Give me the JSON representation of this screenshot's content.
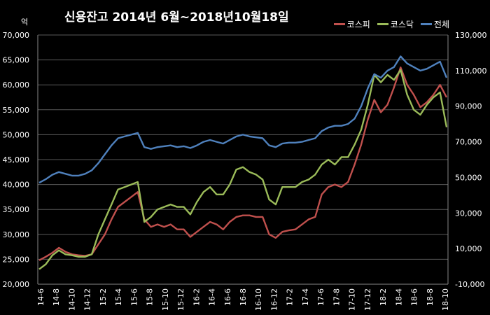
{
  "chart_data": {
    "type": "line",
    "title": "신용잔고  2014년 6월~2018년10월18일",
    "left_unit": "억",
    "x_tick_labels": [
      "14-6",
      "14-8",
      "14-10",
      "14-12",
      "15-2",
      "15-4",
      "15-6",
      "15-8",
      "15-10",
      "15-12",
      "16-2",
      "16-4",
      "16-6",
      "16-8",
      "16-10",
      "16-12",
      "17-2",
      "17-4",
      "17-6",
      "17-8",
      "17-10",
      "17-12",
      "18-2",
      "18-4",
      "18-6",
      "18-8",
      "18-10"
    ],
    "y_left": {
      "min": 20000,
      "max": 70000,
      "step": 5000,
      "ticks": [
        "20,000",
        "25,000",
        "30,000",
        "35,000",
        "40,000",
        "45,000",
        "50,000",
        "55,000",
        "60,000",
        "65,000",
        "70,000"
      ]
    },
    "y_right": {
      "min": -10000,
      "max": 130000,
      "step": 20000,
      "ticks": [
        "-10,000",
        "10,000",
        "30,000",
        "50,000",
        "70,000",
        "90,000",
        "110,000",
        "130,000"
      ]
    },
    "grid": true,
    "legend_position": "top-right",
    "series": [
      {
        "name": "코스피",
        "color": "#c0504d",
        "axis": "left",
        "values": [
          24800,
          25500,
          26300,
          27300,
          26500,
          26000,
          25800,
          25700,
          26000,
          28000,
          30000,
          33000,
          35500,
          36500,
          37500,
          38500,
          33000,
          31500,
          32000,
          31500,
          32000,
          31000,
          31000,
          29500,
          30500,
          31500,
          32500,
          32000,
          31000,
          32500,
          33500,
          33800,
          33800,
          33500,
          33500,
          30000,
          29300,
          30500,
          30800,
          31000,
          32000,
          33000,
          33500,
          38000,
          39500,
          40000,
          39500,
          40500,
          44000,
          48000,
          53000,
          57000,
          54500,
          56000,
          59500,
          63500,
          60000,
          58000,
          55500,
          56500,
          58000,
          60000,
          57500
        ]
      },
      {
        "name": "코스닥",
        "color": "#9bbb59",
        "axis": "left",
        "values": [
          23000,
          24000,
          25800,
          26800,
          26000,
          25800,
          25500,
          25500,
          26000,
          30000,
          33000,
          36000,
          39000,
          39500,
          40000,
          40500,
          32500,
          33500,
          35000,
          35500,
          36000,
          35500,
          35500,
          34000,
          36500,
          38500,
          39500,
          38000,
          38000,
          40000,
          43000,
          43500,
          42500,
          42000,
          41000,
          37000,
          36000,
          39500,
          39500,
          39500,
          40500,
          41000,
          42000,
          44000,
          45000,
          44000,
          45500,
          45500,
          48000,
          51000,
          56000,
          62000,
          60500,
          62000,
          61000,
          63000,
          58000,
          55000,
          54000,
          56000,
          57500,
          58500,
          51500
        ]
      },
      {
        "name": "전체",
        "color": "#4f81bd",
        "axis": "right",
        "values": [
          47000,
          49000,
          51500,
          53000,
          52000,
          51000,
          51000,
          52000,
          54000,
          58000,
          63000,
          68000,
          72000,
          73000,
          74000,
          75000,
          67000,
          66000,
          67000,
          67500,
          68000,
          67000,
          67500,
          66500,
          68000,
          70000,
          71000,
          70000,
          69000,
          71000,
          73000,
          74000,
          73000,
          72500,
          72000,
          68000,
          67000,
          69000,
          69500,
          69500,
          70000,
          71000,
          72000,
          76000,
          78000,
          79000,
          79000,
          80000,
          83000,
          90000,
          100000,
          108000,
          106000,
          110000,
          112000,
          118000,
          114000,
          112000,
          110000,
          111000,
          113000,
          115000,
          106000
        ]
      }
    ]
  }
}
